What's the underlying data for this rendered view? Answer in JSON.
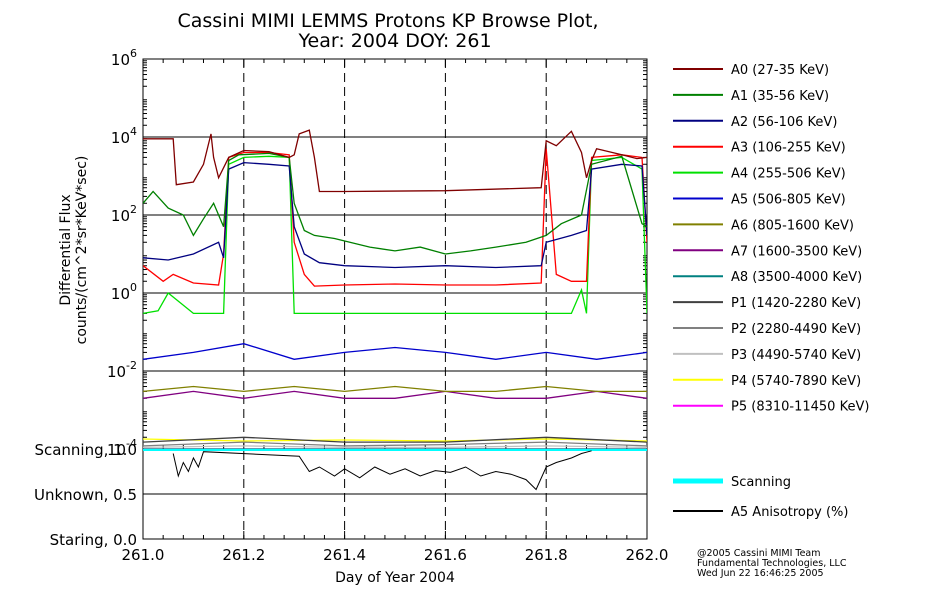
{
  "chart_data": {
    "type": "line",
    "title": "Cassini MIMI LEMMS Protons KP Browse Plot,",
    "subtitle": "Year: 2004 DOY: 261",
    "xlabel": "Day of Year 2004",
    "ylabel_line1": "Differential Flux",
    "ylabel_line2": "counts/(cm^2*sr*KeV*sec)",
    "xlim": [
      261.0,
      262.0
    ],
    "xticks": [
      "261.0",
      "261.2",
      "261.4",
      "261.6",
      "261.8",
      "262.0"
    ],
    "xtick_values": [
      261.0,
      261.2,
      261.4,
      261.6,
      261.8,
      262.0
    ],
    "yscale": "log",
    "ylim": [
      0.0001,
      1000000
    ],
    "yticks": [
      {
        "value": 1000000,
        "base": "10",
        "exp": "6"
      },
      {
        "value": 10000,
        "base": "10",
        "exp": "4"
      },
      {
        "value": 100,
        "base": "10",
        "exp": "2"
      },
      {
        "value": 1,
        "base": "10",
        "exp": "0"
      },
      {
        "value": 0.01,
        "base": "10",
        "exp": "-2"
      },
      {
        "value": 0.0001,
        "base": "10",
        "exp": "-4"
      }
    ],
    "grid": true,
    "vertical_dashed_lines": [
      261.2,
      261.4,
      261.6,
      261.8
    ],
    "legend_position": "right",
    "series": [
      {
        "name": "A0 (27-35 KeV)",
        "color": "#800000",
        "x": [
          261.0,
          261.06,
          261.066,
          261.1,
          261.12,
          261.135,
          261.14,
          261.15,
          261.17,
          261.2,
          261.25,
          261.29,
          261.3,
          261.31,
          261.33,
          261.34,
          261.35,
          261.4,
          261.6,
          261.79,
          261.8,
          261.82,
          261.85,
          261.87,
          261.88,
          261.89,
          261.9,
          261.95,
          261.98,
          262.0
        ],
        "y": [
          9000,
          9000,
          600,
          700,
          2000,
          12000,
          3000,
          900,
          3000,
          4500,
          4200,
          3000,
          3500,
          12000,
          15000,
          3000,
          400,
          400,
          420,
          500,
          8000,
          6000,
          14000,
          4000,
          900,
          2500,
          5000,
          3500,
          2800,
          3000
        ]
      },
      {
        "name": "A1 (35-56 KeV)",
        "color": "#008000",
        "x": [
          261.0,
          261.02,
          261.05,
          261.08,
          261.1,
          261.12,
          261.14,
          261.16,
          261.17,
          261.19,
          261.25,
          261.29,
          261.3,
          261.32,
          261.34,
          261.38,
          261.45,
          261.5,
          261.55,
          261.6,
          261.65,
          261.7,
          261.76,
          261.8,
          261.83,
          261.87,
          261.89,
          261.95,
          261.99,
          262.0
        ],
        "y": [
          200,
          400,
          150,
          100,
          30,
          80,
          200,
          50,
          2500,
          3500,
          3800,
          3000,
          200,
          40,
          30,
          25,
          15,
          12,
          15,
          10,
          12,
          15,
          20,
          30,
          60,
          100,
          2000,
          3200,
          60,
          50
        ]
      },
      {
        "name": "A2 (56-106 KeV)",
        "color": "#000080",
        "x": [
          261.0,
          261.05,
          261.1,
          261.15,
          261.16,
          261.17,
          261.2,
          261.25,
          261.29,
          261.3,
          261.32,
          261.35,
          261.4,
          261.5,
          261.6,
          261.7,
          261.79,
          261.8,
          261.85,
          261.88,
          261.89,
          261.95,
          261.99,
          262.0
        ],
        "y": [
          8,
          7,
          10,
          20,
          8,
          1500,
          2200,
          2000,
          1800,
          50,
          10,
          6,
          5,
          4.5,
          5,
          4.5,
          5,
          20,
          30,
          40,
          1500,
          2000,
          1800,
          30
        ]
      },
      {
        "name": "A3 (106-255 KeV)",
        "color": "#ff0000",
        "x": [
          261.0,
          261.04,
          261.06,
          261.1,
          261.15,
          261.16,
          261.17,
          261.2,
          261.25,
          261.29,
          261.3,
          261.32,
          261.34,
          261.4,
          261.5,
          261.6,
          261.7,
          261.79,
          261.8,
          261.82,
          261.85,
          261.88,
          261.89,
          261.95,
          261.99,
          262.0
        ],
        "y": [
          5,
          2,
          3,
          1.8,
          1.6,
          10,
          3000,
          4000,
          4000,
          3500,
          20,
          3,
          1.5,
          1.6,
          1.7,
          1.6,
          1.6,
          1.8,
          5000,
          3,
          2,
          2,
          3000,
          3500,
          3000,
          20
        ]
      },
      {
        "name": "A4 (255-506 KeV)",
        "color": "#00e000",
        "x": [
          261.0,
          261.03,
          261.05,
          261.1,
          261.15,
          261.16,
          261.17,
          261.2,
          261.25,
          261.29,
          261.3,
          261.32,
          261.4,
          261.5,
          261.6,
          261.7,
          261.79,
          261.85,
          261.87,
          261.88,
          261.89,
          261.95,
          261.99,
          262.0
        ],
        "y": [
          0.3,
          0.35,
          1.0,
          0.3,
          0.3,
          0.3,
          2000,
          3000,
          3200,
          3000,
          0.3,
          0.3,
          0.3,
          0.3,
          0.3,
          0.3,
          0.3,
          0.3,
          1.2,
          0.3,
          2500,
          3000,
          1500,
          0.3
        ]
      },
      {
        "name": "A5 (506-805 KeV)",
        "color": "#0000cc",
        "x": [
          261.0,
          261.1,
          261.2,
          261.3,
          261.4,
          261.5,
          261.6,
          261.7,
          261.8,
          261.9,
          262.0
        ],
        "y": [
          0.02,
          0.03,
          0.05,
          0.02,
          0.03,
          0.04,
          0.03,
          0.02,
          0.03,
          0.02,
          0.03
        ]
      },
      {
        "name": "A6 (805-1600 KeV)",
        "color": "#808000",
        "x": [
          261.0,
          261.1,
          261.2,
          261.3,
          261.4,
          261.5,
          261.6,
          261.7,
          261.8,
          261.9,
          262.0
        ],
        "y": [
          0.003,
          0.004,
          0.003,
          0.004,
          0.003,
          0.004,
          0.003,
          0.003,
          0.004,
          0.003,
          0.003
        ]
      },
      {
        "name": "A7 (1600-3500 KeV)",
        "color": "#800080",
        "x": [
          261.0,
          261.1,
          261.2,
          261.3,
          261.4,
          261.5,
          261.6,
          261.7,
          261.8,
          261.9,
          262.0
        ],
        "y": [
          0.002,
          0.003,
          0.002,
          0.003,
          0.002,
          0.002,
          0.003,
          0.002,
          0.002,
          0.003,
          0.002
        ]
      },
      {
        "name": "A8 (3500-4000 KeV)",
        "color": "#008080",
        "x": [
          261.0,
          261.2,
          261.4,
          261.6,
          261.8,
          262.0
        ],
        "y": [
          0.0001,
          0.0001,
          0.0001,
          0.0001,
          0.0001,
          0.0001
        ]
      },
      {
        "name": "P1 (1420-2280 KeV)",
        "color": "#404040",
        "x": [
          261.0,
          261.2,
          261.4,
          261.6,
          261.8,
          262.0
        ],
        "y": [
          0.00015,
          0.0002,
          0.00015,
          0.00015,
          0.0002,
          0.00015
        ]
      },
      {
        "name": "P2 (2280-4490 KeV)",
        "color": "#808080",
        "x": [
          261.0,
          261.2,
          261.4,
          261.6,
          261.8,
          262.0
        ],
        "y": [
          0.00012,
          0.00015,
          0.00012,
          0.00013,
          0.00015,
          0.00012
        ]
      },
      {
        "name": "P3 (4490-5740 KeV)",
        "color": "#c0c0c0",
        "x": [
          261.0,
          261.2,
          261.4,
          261.6,
          261.8,
          262.0
        ],
        "y": [
          0.00011,
          0.00012,
          0.00011,
          0.00011,
          0.00012,
          0.00011
        ]
      },
      {
        "name": "P4 (5740-7890 KeV)",
        "color": "#ffff00",
        "x": [
          261.0,
          261.2,
          261.4,
          261.6,
          261.8,
          262.0
        ],
        "y": [
          0.00018,
          0.00016,
          0.00017,
          0.00016,
          0.00018,
          0.00016
        ]
      },
      {
        "name": "P5 (8310-11450 KeV)",
        "color": "#ff00ff",
        "x": [
          261.0,
          262.0
        ],
        "y": [
          0.0001,
          0.0001
        ]
      }
    ],
    "lower_panel": {
      "ylim": [
        0.0,
        1.0
      ],
      "yticks": [
        {
          "label": "Scanning, 1.0",
          "value": 1.0
        },
        {
          "label": "Unknown, 0.5",
          "value": 0.5
        },
        {
          "label": "Staring, 0.0",
          "value": 0.0
        }
      ],
      "series": [
        {
          "name": "Scanning",
          "color": "#00ffff",
          "x": [
            261.0,
            262.0
          ],
          "y": [
            1.0,
            1.0
          ]
        },
        {
          "name": "A5 Anisotropy (%)",
          "color": "#000000",
          "x": [
            261.06,
            261.07,
            261.08,
            261.09,
            261.1,
            261.11,
            261.12,
            261.31,
            261.33,
            261.35,
            261.38,
            261.4,
            261.43,
            261.46,
            261.49,
            261.52,
            261.55,
            261.58,
            261.61,
            261.64,
            261.67,
            261.7,
            261.73,
            261.76,
            261.78,
            261.8,
            261.82,
            261.85,
            261.87,
            261.89
          ],
          "y": [
            0.95,
            0.7,
            0.85,
            0.75,
            0.9,
            0.8,
            0.97,
            0.92,
            0.75,
            0.8,
            0.7,
            0.78,
            0.68,
            0.8,
            0.72,
            0.78,
            0.7,
            0.76,
            0.74,
            0.8,
            0.7,
            0.75,
            0.72,
            0.66,
            0.55,
            0.8,
            0.85,
            0.9,
            0.95,
            0.98
          ]
        }
      ]
    }
  },
  "credit": {
    "line1": "@2005 Cassini MIMI Team",
    "line2": "Fundamental Technologies, LLC",
    "line3": "Wed Jun 22 16:46:25 2005"
  }
}
